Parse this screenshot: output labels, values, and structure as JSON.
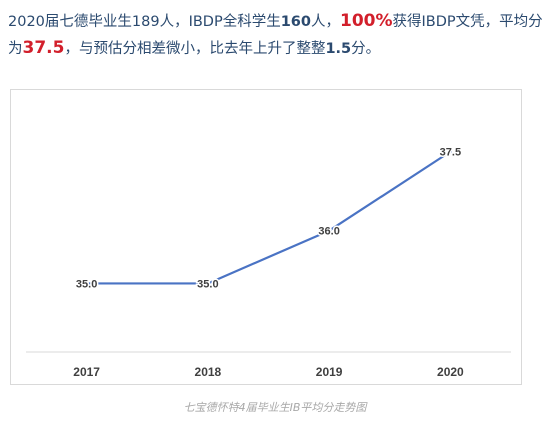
{
  "intro": {
    "part1": "2020届七德毕业生189人，IBDP全科学生",
    "n_full": "160",
    "part2": "人，",
    "pct": "100%",
    "part3": "获得IBDP文凭，平均分为",
    "avg": "37.5",
    "part4": "，与预估分相差微小，比去年上升了整整",
    "rise": "1.5",
    "part5": "分。"
  },
  "caption": "七宝德怀特4届毕业生IB平均分走势图",
  "colors": {
    "line": "#4a73c4",
    "axis": "#d9d9d9",
    "label": "#404040",
    "highlight": "#d21f2b",
    "text": "#2b4a6f"
  },
  "chart_data": {
    "type": "line",
    "categories": [
      "2017",
      "2018",
      "2019",
      "2020"
    ],
    "values": [
      35.0,
      35.0,
      36.0,
      37.5
    ],
    "data_labels": [
      "35.0",
      "35.0",
      "36.0",
      "37.5"
    ],
    "title": "",
    "xlabel": "",
    "ylabel": "",
    "ylim": [
      33.7,
      38.1
    ],
    "grid": false,
    "legend": "none"
  }
}
